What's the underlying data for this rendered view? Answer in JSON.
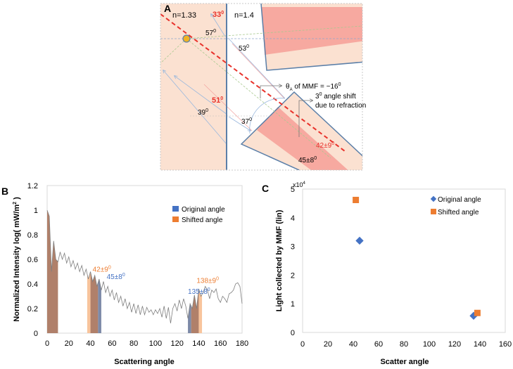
{
  "panel_a": {
    "label": "A",
    "n_left": "n=1.33",
    "n_right": "n=1.4",
    "angles": {
      "a33": {
        "main": "33",
        "sup": "0"
      },
      "a57": {
        "main": "57",
        "sup": "0"
      },
      "a53": {
        "main": "53",
        "sup": "0"
      },
      "a51": {
        "main": "51",
        "sup": "0"
      },
      "a39": {
        "main": "39",
        "sup": "0"
      },
      "a37": {
        "main": "37",
        "sup": "0"
      },
      "shifted": {
        "main": "42±9",
        "sup": "0"
      },
      "original": {
        "main": "45±8",
        "sup": "0"
      }
    },
    "theta_note": {
      "theta": "θ",
      "sub": "A",
      "text": " of MMF = ~16",
      "sup": "0"
    },
    "shift_note": {
      "line1_main": "3",
      "line1_sup": "0",
      "line1_rest": " angle shift",
      "line2": "due to refraction"
    },
    "colors": {
      "water": "#fbe1d1",
      "core": "#f7a9a0",
      "interface": "#5b7fa8",
      "ray_line": "#e8322b",
      "particle": "#f0b323"
    }
  },
  "chart_data": [
    {
      "panel_label": "B",
      "type": "area",
      "title": "",
      "xlabel": "Scattering angle",
      "ylabel": {
        "main": "Normalized Intensity log( mW/m",
        "sup": "2",
        "end": " )"
      },
      "xlim": [
        0,
        180
      ],
      "ylim": [
        0,
        1.2
      ],
      "xticks": [
        "0",
        "20",
        "40",
        "60",
        "80",
        "100",
        "120",
        "140",
        "160",
        "180"
      ],
      "yticks": [
        "0",
        "0.2",
        "0.4",
        "0.6",
        "0.8",
        "1",
        "1.2"
      ],
      "x": [
        0,
        2,
        4,
        6,
        8,
        10,
        12,
        14,
        16,
        18,
        20,
        22,
        24,
        26,
        28,
        30,
        32,
        34,
        36,
        38,
        40,
        42,
        44,
        46,
        48,
        50,
        52,
        54,
        56,
        58,
        60,
        62,
        64,
        66,
        68,
        70,
        72,
        74,
        76,
        78,
        80,
        82,
        84,
        86,
        88,
        90,
        92,
        94,
        96,
        98,
        100,
        102,
        104,
        106,
        108,
        110,
        112,
        114,
        116,
        118,
        120,
        122,
        124,
        126,
        128,
        130,
        132,
        134,
        136,
        138,
        140,
        142,
        144,
        146,
        148,
        150,
        152,
        154,
        156,
        158,
        160,
        162,
        164,
        166,
        168,
        170,
        172,
        174,
        176,
        178,
        180
      ],
      "y": [
        1.0,
        0.95,
        0.5,
        0.75,
        0.6,
        0.58,
        0.66,
        0.6,
        0.65,
        0.57,
        0.62,
        0.54,
        0.59,
        0.52,
        0.57,
        0.5,
        0.55,
        0.47,
        0.52,
        0.44,
        0.5,
        0.42,
        0.47,
        0.38,
        0.44,
        0.35,
        0.42,
        0.33,
        0.38,
        0.3,
        0.35,
        0.27,
        0.33,
        0.25,
        0.3,
        0.22,
        0.28,
        0.2,
        0.25,
        0.17,
        0.24,
        0.16,
        0.23,
        0.15,
        0.22,
        0.15,
        0.21,
        0.17,
        0.19,
        0.15,
        0.19,
        0.16,
        0.2,
        0.13,
        0.22,
        0.12,
        0.21,
        0.08,
        0.2,
        0.24,
        0.18,
        0.27,
        0.2,
        0.28,
        0.22,
        0.12,
        0.24,
        0.2,
        0.31,
        0.2,
        0.36,
        0.3,
        0.33,
        0.38,
        0.35,
        0.28,
        0.35,
        0.33,
        0.36,
        0.28,
        0.25,
        0.3,
        0.28,
        0.25,
        0.32,
        0.33,
        0.35,
        0.4,
        0.41,
        0.38,
        0.24
      ],
      "bands": {
        "original": [
          [
            0,
            10
          ],
          [
            40,
            50
          ],
          [
            130,
            140
          ]
        ],
        "shifted": [
          [
            0,
            10
          ],
          [
            37,
            47
          ],
          [
            133,
            143
          ]
        ]
      },
      "legend": [
        {
          "name": "Original angle",
          "color": "#4472c4"
        },
        {
          "name": "Shifted  angle",
          "color": "#ed7d31"
        }
      ],
      "legend_position": "top-right",
      "annotations": [
        {
          "main": "42±9",
          "sup": "0",
          "color": "#ed7d31",
          "x": 42,
          "y": 0.5
        },
        {
          "main": "45±8",
          "sup": "0",
          "color": "#4472c4",
          "x": 55,
          "y": 0.44
        },
        {
          "main": "135±8",
          "sup": "0",
          "color": "#4472c4",
          "x": 130,
          "y": 0.32
        },
        {
          "main": "138±9",
          "sup": "0",
          "color": "#ed7d31",
          "x": 138,
          "y": 0.41
        }
      ],
      "fill_colors": {
        "original": "#7d8aa8",
        "shifted": "#f8c49c",
        "overlap": "#b0806a"
      }
    },
    {
      "panel_label": "C",
      "type": "scatter",
      "xlabel": "Scatter angle",
      "ylabel": "Light  collected by MMF (lin)",
      "multiplier": {
        "main": "x10",
        "sup": "4"
      },
      "xlim": [
        0,
        160
      ],
      "ylim": [
        0,
        5
      ],
      "xticks": [
        "0",
        "20",
        "40",
        "60",
        "80",
        "100",
        "120",
        "140",
        "160"
      ],
      "yticks": [
        "0",
        "1",
        "2",
        "3",
        "4",
        "5"
      ],
      "series": [
        {
          "name": "Original angle",
          "marker": "diamond",
          "color": "#4472c4",
          "points": [
            [
              45,
              3.2
            ],
            [
              135,
              0.58
            ]
          ]
        },
        {
          "name": "Shifted angle",
          "marker": "square",
          "color": "#ed7d31",
          "points": [
            [
              42,
              4.62
            ],
            [
              138,
              0.68
            ]
          ]
        }
      ],
      "legend_position": "top-right"
    }
  ]
}
